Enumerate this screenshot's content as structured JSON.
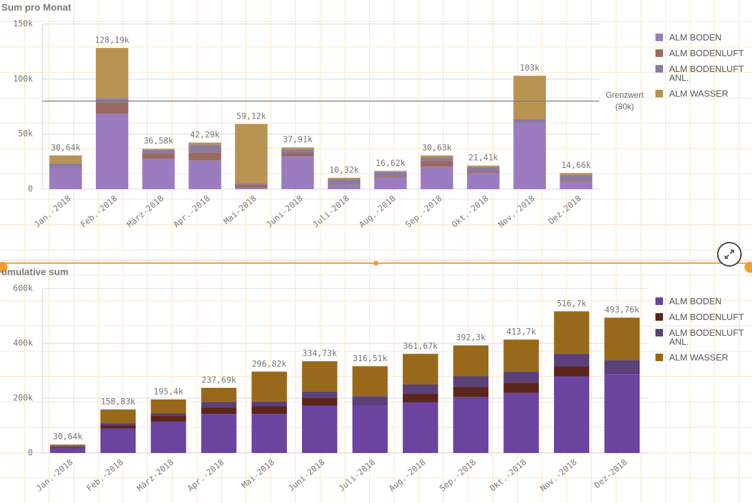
{
  "chart_data": [
    {
      "type": "stacked_bar",
      "title": "Sum pro Monat",
      "categories": [
        "Jan.-2018",
        "Feb.-2018",
        "März-2018",
        "Apr.-2018",
        "Mai-2018",
        "Juni-2018",
        "Juli-2018",
        "Aug.-2018",
        "Sep.-2018",
        "Okt.-2018",
        "Nov.-2018",
        "Dez-2018"
      ],
      "series": [
        {
          "name": "ALM BODEN",
          "color": "#9b7cc0",
          "values": [
            19000,
            68300,
            27500,
            26000,
            800,
            29800,
            3500,
            10500,
            20500,
            15000,
            60000,
            7000
          ]
        },
        {
          "name": "ALM BODENLUFT",
          "color": "#9a6a60",
          "values": [
            0,
            10600,
            5400,
            7500,
            3200,
            3500,
            500,
            1200,
            5500,
            1200,
            0,
            1000
          ]
        },
        {
          "name": "ALM BODENLUFT ANL.",
          "color": "#8b7ba2",
          "values": [
            4500,
            3700,
            3000,
            6800,
            1500,
            3000,
            5200,
            4000,
            3000,
            3800,
            3500,
            5000
          ]
        },
        {
          "name": "ALM WASSER",
          "color": "#b89352",
          "values": [
            7140,
            45590,
            680,
            1990,
            53620,
            1610,
            1120,
            920,
            1630,
            1410,
            39500,
            1660
          ]
        }
      ],
      "total_labels": [
        "30,64k",
        "128,19k",
        "36,58k",
        "42,29k",
        "59,12k",
        "37,91k",
        "10,32k",
        "16,62k",
        "30,63k",
        "21,41k",
        "103k",
        "14,66k"
      ],
      "ylim": [
        0,
        150000
      ],
      "yticks": [
        0,
        {
          "value": 50000,
          "label": "50k"
        },
        {
          "value": 100000,
          "label": "100k"
        },
        {
          "value": 150000,
          "label": "150k"
        }
      ],
      "reference_line": {
        "value": 80000,
        "label_lines": [
          "Grenzwert",
          "(80k)"
        ]
      },
      "grid": true,
      "legend": "right"
    },
    {
      "type": "stacked_bar",
      "title": "umulative sum",
      "categories": [
        "Jan.-2018",
        "Feb.-2018",
        "März-2018",
        "Apr.-2018",
        "Mai-2018",
        "Juni-2018",
        "Juli-2018",
        "Aug.-2018",
        "Sep.-2018",
        "Okt.-2018",
        "Nov.-2018",
        "Dez-2018"
      ],
      "series": [
        {
          "name": "ALM BODEN",
          "color": "#6a449e",
          "values": [
            18000,
            90000,
            115000,
            142000,
            142000,
            172000,
            175000,
            185000,
            205000,
            220000,
            280000,
            287000
          ]
        },
        {
          "name": "ALM BODENLUFT",
          "color": "#5c2519",
          "values": [
            2000,
            12000,
            20000,
            23000,
            28000,
            30000,
            0,
            30000,
            37000,
            37000,
            35000,
            0
          ]
        },
        {
          "name": "ALM BODENLUFT ANL.",
          "color": "#5b4079",
          "values": [
            4000,
            7000,
            10000,
            20000,
            18000,
            22000,
            32000,
            35000,
            38000,
            40000,
            47000,
            52000
          ]
        },
        {
          "name": "ALM WASSER",
          "color": "#99691b",
          "values": [
            6640,
            49830,
            50400,
            52690,
            108820,
            110730,
            109510,
            111670,
            112300,
            116700,
            154700,
            154760
          ]
        }
      ],
      "total_labels": [
        "30,64k",
        "158,83k",
        "195,4k",
        "237,69k",
        "296,82k",
        "334,73k",
        "316,51k",
        "361,67k",
        "392,3k",
        "413,7k",
        "516,7k",
        "493,76k"
      ],
      "ylim": [
        0,
        600000
      ],
      "yticks": [
        0,
        {
          "value": 200000,
          "label": "200k"
        },
        {
          "value": 400000,
          "label": "400k"
        },
        {
          "value": 600000,
          "label": "600k"
        }
      ],
      "grid": true,
      "legend": "right"
    }
  ]
}
